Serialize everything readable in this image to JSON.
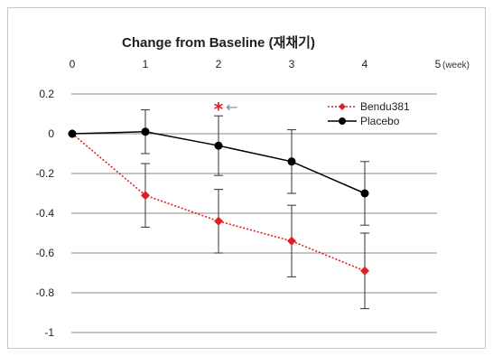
{
  "chart_data": {
    "type": "line",
    "title": "Change from Baseline (재채기)",
    "x": [
      0,
      1,
      2,
      3,
      4
    ],
    "x_ticks": [
      "0",
      "1",
      "2",
      "3",
      "4",
      "5"
    ],
    "x_unit": "(week)",
    "xlim": [
      0,
      5
    ],
    "ylim": [
      -1,
      0.2
    ],
    "y_ticks": [
      "0.2",
      "0",
      "-0.2",
      "-0.4",
      "-0.6",
      "-0.8",
      "-1"
    ],
    "grid": true,
    "legend_position": "top-right",
    "annotation": {
      "marker": "*",
      "arrow": "←",
      "x": 2
    },
    "series": [
      {
        "name": "Bendu381",
        "color": "#e02020",
        "style": "dotted",
        "values": [
          0,
          -0.31,
          -0.44,
          -0.54,
          -0.69
        ],
        "err": [
          0,
          0.16,
          0.16,
          0.18,
          0.19
        ]
      },
      {
        "name": "Placebo",
        "color": "#000000",
        "style": "solid",
        "values": [
          0,
          0.01,
          -0.06,
          -0.14,
          -0.3
        ],
        "err": [
          0,
          0.11,
          0.15,
          0.16,
          0.16
        ]
      }
    ]
  }
}
